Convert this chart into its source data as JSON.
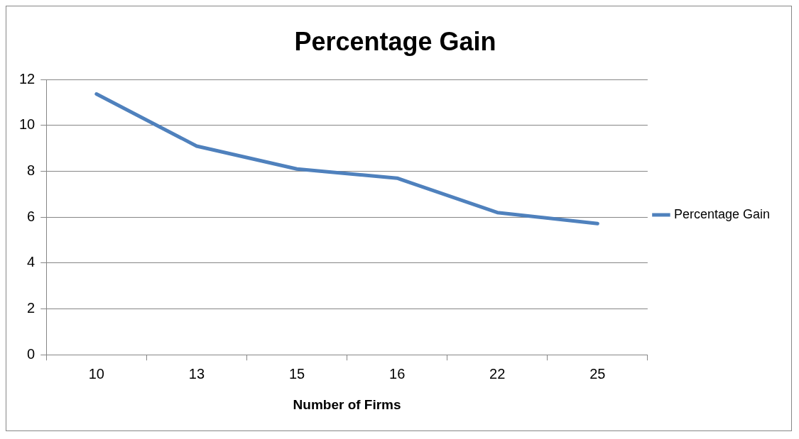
{
  "chart_data": {
    "type": "line",
    "title": "Percentage Gain",
    "xlabel": "Number of Firms",
    "categories": [
      "10",
      "13",
      "15",
      "16",
      "22",
      "25"
    ],
    "series": [
      {
        "name": "Percentage Gain",
        "color": "#4f81bd",
        "values": [
          11.37,
          9.1,
          8.1,
          7.7,
          6.2,
          5.72
        ]
      }
    ],
    "ylim": [
      0,
      12
    ],
    "yticks": [
      0,
      2,
      4,
      6,
      8,
      10,
      12
    ],
    "grid": "y",
    "legend": "right",
    "marker": "none",
    "line_style": "solid"
  }
}
